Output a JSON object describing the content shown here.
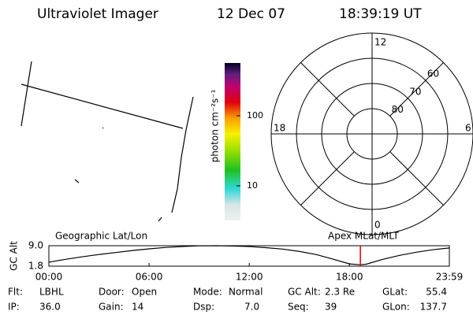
{
  "header": {
    "instrument": "Ultraviolet Imager",
    "date": "12 Dec 07",
    "time": "18:39:19 UT"
  },
  "colorbar": {
    "label": "photon cm⁻²s⁻¹",
    "scale": "log",
    "lim": [
      3.2,
      566
    ],
    "ticks": [
      10,
      100
    ]
  },
  "polar": {
    "lat_rings": [
      80,
      70,
      60
    ],
    "mlt_labels": {
      "top": "12",
      "left": "18",
      "right": "6",
      "bottom": "0"
    }
  },
  "chart_data": {
    "type": "line",
    "y_label": "GC Alt",
    "left_title": "Geographic Lat/Lon",
    "right_title": "Apex MLat/MLT",
    "x": [
      0,
      1,
      2,
      3,
      4,
      5,
      6,
      7,
      8,
      9,
      10,
      11,
      12,
      13,
      14,
      15,
      16,
      17,
      18,
      18.655,
      19,
      20,
      21,
      22,
      23,
      23.983
    ],
    "series": [
      {
        "name": "GC Alt",
        "color": "#000000",
        "values": [
          3.2,
          4.2,
          5.1,
          5.9,
          6.6,
          7.3,
          7.9,
          8.4,
          8.7,
          8.95,
          9.0,
          8.9,
          8.7,
          8.3,
          7.8,
          7.0,
          5.9,
          4.3,
          2.6,
          2.3,
          2.5,
          4.2,
          5.6,
          6.7,
          7.6,
          8.2
        ]
      }
    ],
    "xlim": [
      0,
      23.983
    ],
    "xticks": [
      {
        "value": 0,
        "label": "00:00"
      },
      {
        "value": 6,
        "label": "06:00"
      },
      {
        "value": 12,
        "label": "12:00"
      },
      {
        "value": 18,
        "label": "18:00"
      },
      {
        "value": 23.983,
        "label": "23:59"
      }
    ],
    "ylim": [
      1.8,
      9.0
    ],
    "yticks": [
      {
        "value": 1.8,
        "label": "1.8"
      },
      {
        "value": 9.0,
        "label": "9.0"
      }
    ],
    "marker_x": 18.655,
    "marker_color": "#dd0000"
  },
  "footer": [
    [
      {
        "label": "Flt:",
        "value": "LBHL"
      },
      {
        "label": "Door:",
        "value": "Open"
      },
      {
        "label": "Mode:",
        "value": "Normal"
      },
      {
        "label": "GC Alt:",
        "value": "2.3 Re"
      },
      {
        "label": "GLat:",
        "value": "55.4"
      }
    ],
    [
      {
        "label": "IP:",
        "value": "36.0"
      },
      {
        "label": "Gain:",
        "value": "14"
      },
      {
        "label": "Dsp:",
        "value": "7.0"
      },
      {
        "label": "Seq:",
        "value": "39"
      },
      {
        "label": "GLon:",
        "value": "137.7"
      }
    ]
  ]
}
